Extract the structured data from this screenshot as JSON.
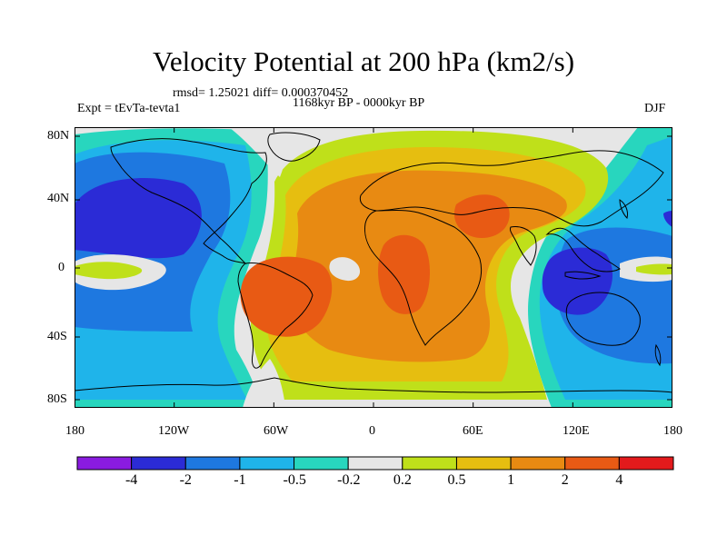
{
  "title": "Velocity Potential at 200 hPa (km2/s)",
  "stats_line": "rmsd= 1.25021 diff= 0.000370452",
  "experiment": "Expt = tEvTa-tevta1",
  "period": "1168kyr BP - 0000kyr BP",
  "season": "DJF",
  "lat_labels": [
    "80N",
    "40N",
    "0",
    "40S",
    "80S"
  ],
  "lon_labels": [
    "180",
    "120W",
    "60W",
    "0",
    "60E",
    "120E",
    "180"
  ],
  "colorbar": {
    "colors": [
      "#8a1be0",
      "#2b2bd6",
      "#1e78e0",
      "#1fb4ea",
      "#28d6be",
      "#e6e6e6",
      "#bfe01a",
      "#e6be10",
      "#e88a12",
      "#e85a14",
      "#e31a1c"
    ],
    "labels": [
      "-4",
      "-2",
      "-1",
      "-0.5",
      "-0.2",
      "0.2",
      "0.5",
      "1",
      "2",
      "4"
    ]
  },
  "palette": {
    "blue_strong": "#2b2bd6",
    "blue": "#1e78e0",
    "cyan": "#1fb4ea",
    "teal": "#28d6be",
    "neutral": "#e6e6e6",
    "yellow_green": "#bfe01a",
    "gold": "#e6be10",
    "orange": "#e88a12",
    "orange_red": "#e85a14",
    "red": "#e31a1c"
  }
}
